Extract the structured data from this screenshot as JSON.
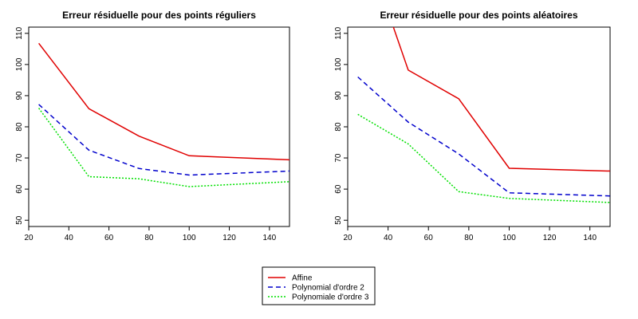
{
  "legend": {
    "entries": [
      {
        "label": "Affine",
        "color": "#e00000",
        "dash": "solid"
      },
      {
        "label": "Polynomial d'ordre 2",
        "color": "#0000cc",
        "dash": "dashed"
      },
      {
        "label": "Polynomiale d'ordre 3",
        "color": "#00e000",
        "dash": "dotted"
      }
    ]
  },
  "chart_data": [
    {
      "type": "line",
      "title": "Erreur résiduelle pour des points réguliers",
      "xlabel": "",
      "ylabel": "",
      "xlim": [
        20,
        150
      ],
      "ylim": [
        48,
        112
      ],
      "xticks": [
        20,
        40,
        60,
        80,
        100,
        120,
        140
      ],
      "yticks": [
        50,
        60,
        70,
        80,
        90,
        100,
        110
      ],
      "x": [
        25,
        50,
        75,
        100,
        150
      ],
      "series": [
        {
          "name": "Affine",
          "color": "#e00000",
          "dash": "solid",
          "values": [
            106.8,
            85.8,
            77,
            70.7,
            69.4
          ]
        },
        {
          "name": "Polynomial d'ordre 2",
          "color": "#0000cc",
          "dash": "dashed",
          "values": [
            87.2,
            72.5,
            66.6,
            64.5,
            65.8
          ]
        },
        {
          "name": "Polynomiale d'ordre 3",
          "color": "#00e000",
          "dash": "dotted",
          "values": [
            86,
            64,
            63.3,
            60.8,
            62.4
          ]
        }
      ],
      "grid": false
    },
    {
      "type": "line",
      "title": "Erreur résiduelle pour des points aléatoires",
      "xlabel": "",
      "ylabel": "",
      "xlim": [
        20,
        150
      ],
      "ylim": [
        48,
        112
      ],
      "xticks": [
        20,
        40,
        60,
        80,
        100,
        120,
        140
      ],
      "yticks": [
        50,
        60,
        70,
        80,
        90,
        100,
        110
      ],
      "x": [
        25,
        50,
        75,
        100,
        150
      ],
      "series": [
        {
          "name": "Affine",
          "color": "#e00000",
          "dash": "solid",
          "values": [
            145,
            98.2,
            89,
            66.7,
            65.8
          ]
        },
        {
          "name": "Polynomial d'ordre 2",
          "color": "#0000cc",
          "dash": "dashed",
          "values": [
            96,
            81.5,
            71.3,
            58.8,
            57.8
          ]
        },
        {
          "name": "Polynomiale d'ordre 3",
          "color": "#00e000",
          "dash": "dotted",
          "values": [
            84,
            74.5,
            59.2,
            57,
            55.7
          ]
        }
      ],
      "grid": false
    }
  ]
}
